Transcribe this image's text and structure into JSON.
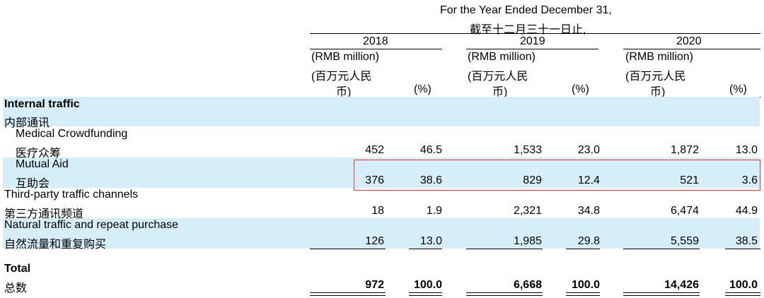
{
  "header": {
    "period_en": "For the Year Ended December 31,",
    "period_cn": "截至十二月三十一日止,",
    "years": [
      "2018",
      "2019",
      "2020"
    ],
    "unit_en": "(RMB million)",
    "unit_cn_1": "(百万元人民",
    "unit_cn_2": "币)",
    "pct": "(%)"
  },
  "rows": [
    {
      "label_en": "Internal traffic",
      "label_cn": "内部通讯"
    },
    {
      "label_en": "Medical Crowdfunding",
      "label_cn": "医疗众筹",
      "values": [
        "452",
        "46.5",
        "1,533",
        "23.0",
        "1,872",
        "13.0"
      ]
    },
    {
      "label_en": "Mutual Aid",
      "label_cn": "互助会",
      "values": [
        "376",
        "38.6",
        "829",
        "12.4",
        "521",
        "3.6"
      ]
    },
    {
      "label_en": "Third-party traffic channels",
      "label_cn": "第三方通讯频道",
      "values": [
        "18",
        "1.9",
        "2,321",
        "34.8",
        "6,474",
        "44.9"
      ]
    },
    {
      "label_en": "Natural traffic and repeat purchase",
      "label_cn": "自然流量和重复购买",
      "values": [
        "126",
        "13.0",
        "1,985",
        "29.8",
        "5,559",
        "38.5"
      ]
    },
    {
      "label_en": "Total",
      "label_cn": "总数",
      "values": [
        "972",
        "100.0",
        "6,668",
        "100.0",
        "14,426",
        "100.0"
      ]
    }
  ],
  "colors": {
    "band": "#d6eefa",
    "highlight": "#e0343a"
  }
}
